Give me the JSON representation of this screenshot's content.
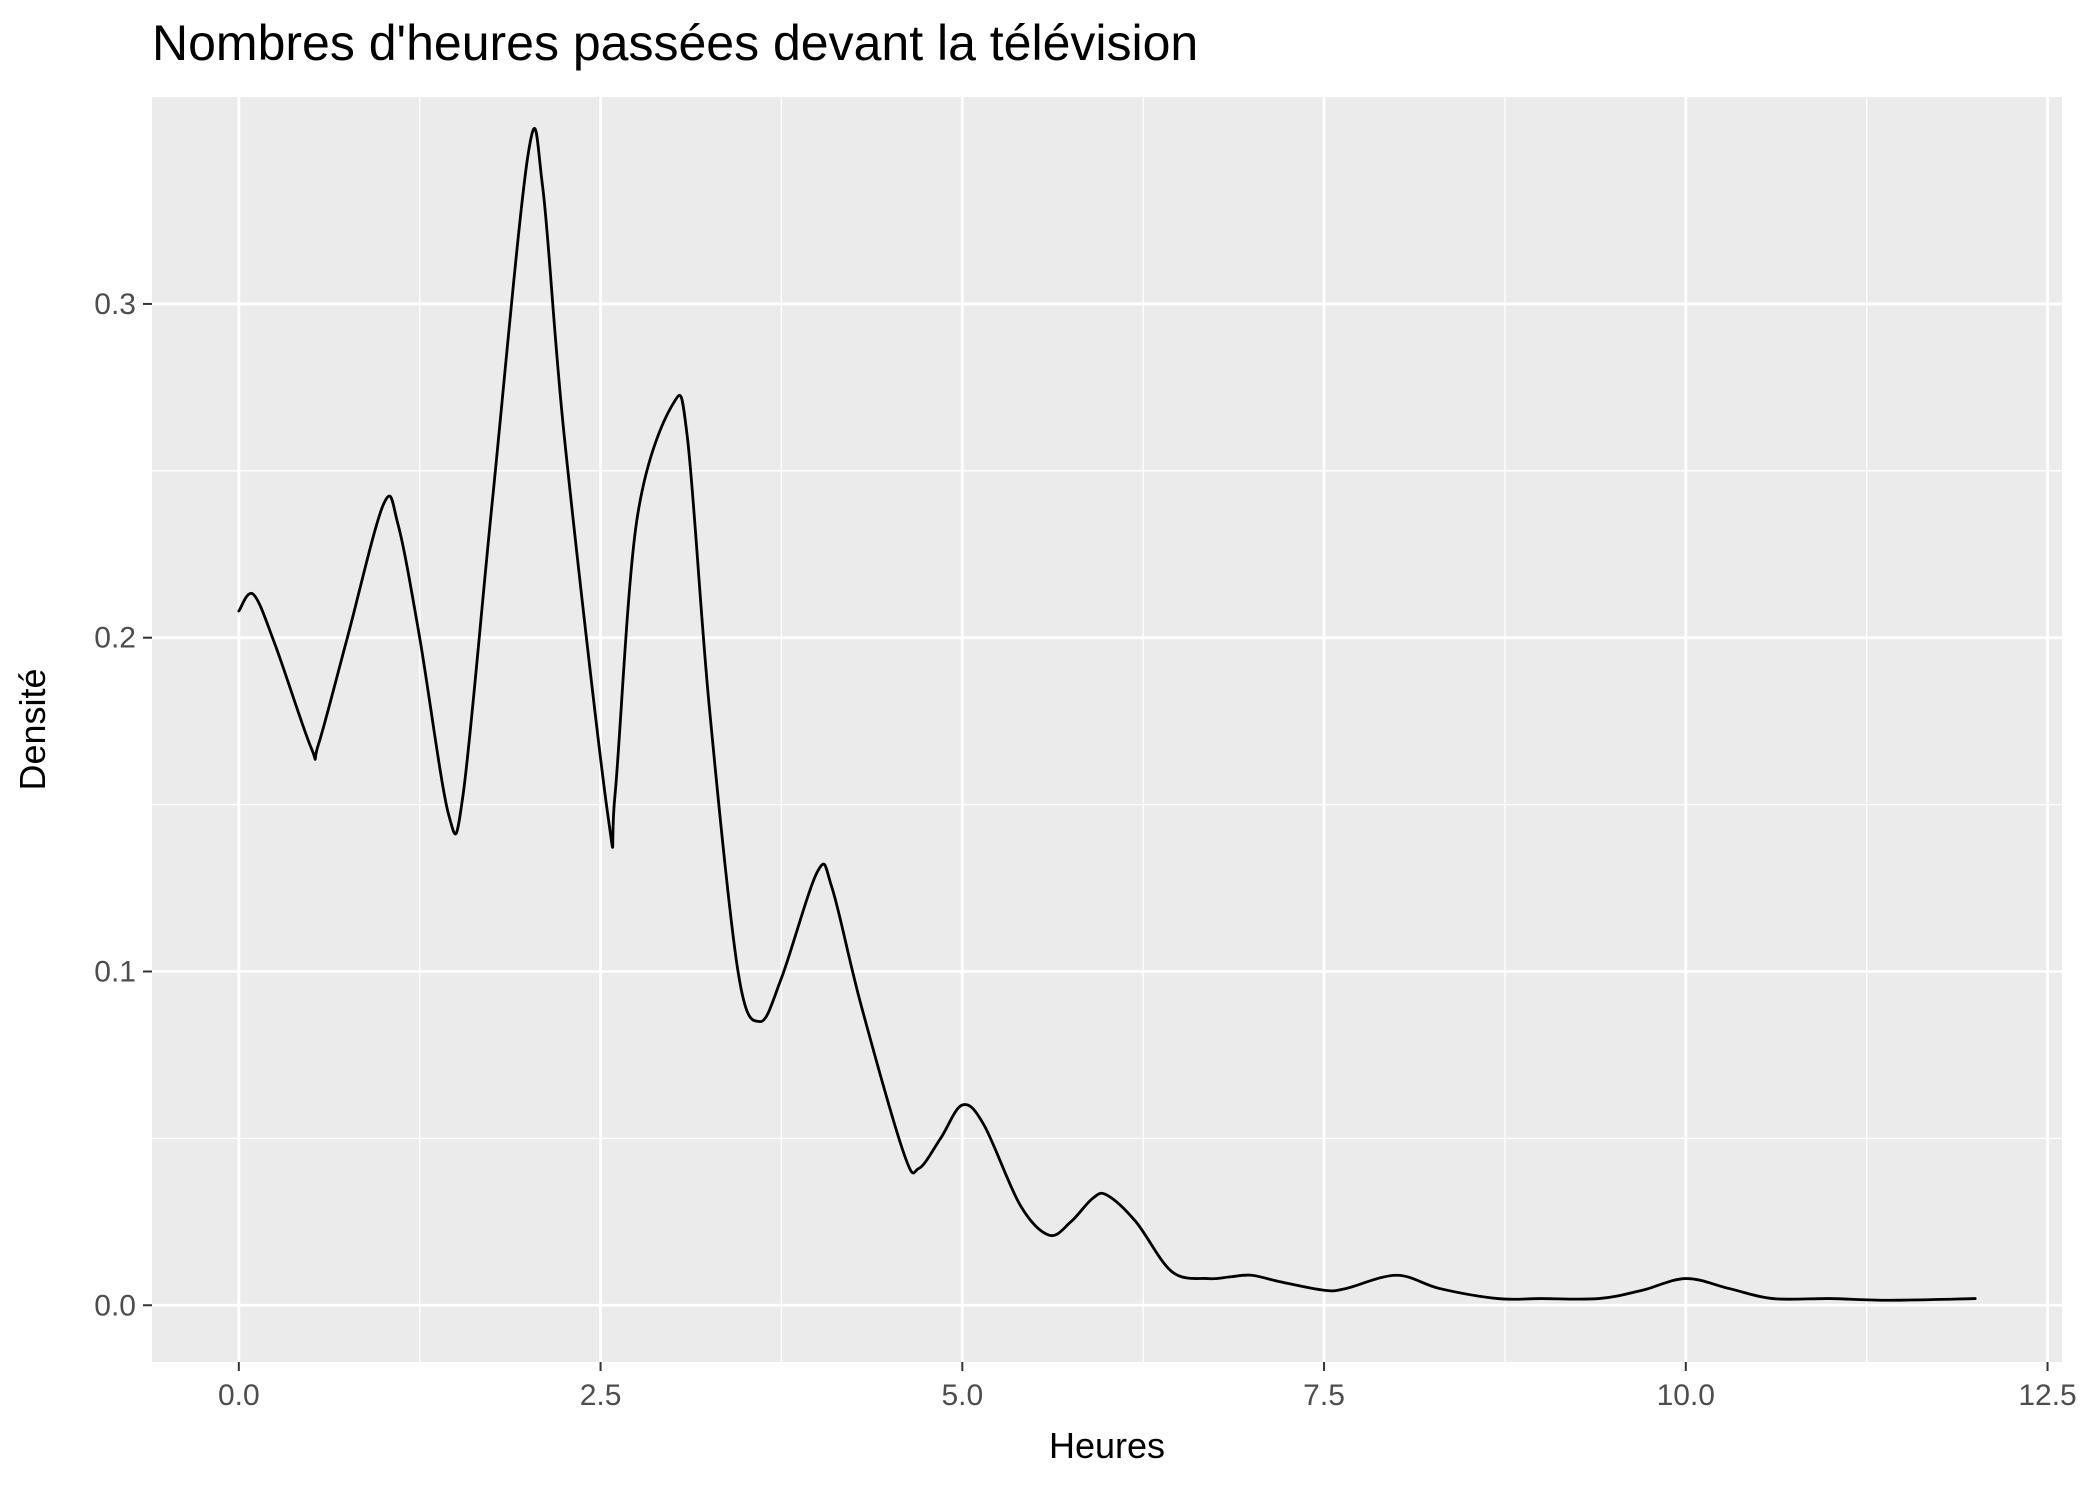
{
  "chart_data": {
    "type": "line",
    "title": "Nombres d'heures passées devant la télévision",
    "xlabel": "Heures",
    "ylabel": "Densité",
    "xlim": [
      -0.6,
      12.6
    ],
    "ylim": [
      -0.017,
      0.362
    ],
    "x_ticks": [
      0,
      2.5,
      5,
      7.5,
      10,
      12.5
    ],
    "x_tick_labels": [
      "0.0",
      "2.5",
      "5.0",
      "7.5",
      "10.0",
      "12.5"
    ],
    "y_ticks": [
      0,
      0.1,
      0.2,
      0.3
    ],
    "y_tick_labels": [
      "0.0",
      "0.1",
      "0.2",
      "0.3"
    ],
    "grid": true,
    "legend": "none",
    "colors": {
      "panel": "#ebebeb",
      "grid": "#ffffff",
      "line": "#000000",
      "tick_label": "#4d4d4d",
      "tick_mark": "#333333"
    },
    "series": [
      {
        "x": [
          0,
          0.1,
          0.25,
          0.5,
          0.55,
          0.75,
          1.0,
          1.1,
          1.25,
          1.45,
          1.55,
          1.75,
          2.0,
          2.1,
          2.25,
          2.55,
          2.6,
          2.75,
          3.0,
          3.1,
          3.25,
          3.45,
          3.6,
          3.75,
          4.0,
          4.1,
          4.3,
          4.6,
          4.7,
          4.85,
          5.0,
          5.15,
          5.4,
          5.6,
          5.75,
          5.9,
          6.0,
          6.2,
          6.45,
          6.7,
          6.85,
          7.0,
          7.2,
          7.5,
          7.65,
          8.0,
          8.3,
          8.7,
          9.0,
          9.4,
          9.7,
          10.0,
          10.3,
          10.6,
          11.0,
          11.4,
          12.0
        ],
        "y": [
          0.208,
          0.213,
          0.198,
          0.167,
          0.168,
          0.2,
          0.24,
          0.234,
          0.2,
          0.147,
          0.153,
          0.24,
          0.345,
          0.335,
          0.26,
          0.147,
          0.153,
          0.235,
          0.27,
          0.26,
          0.18,
          0.1,
          0.085,
          0.098,
          0.13,
          0.125,
          0.09,
          0.045,
          0.041,
          0.05,
          0.06,
          0.054,
          0.03,
          0.021,
          0.025,
          0.032,
          0.033,
          0.025,
          0.01,
          0.008,
          0.0085,
          0.009,
          0.007,
          0.0045,
          0.005,
          0.009,
          0.005,
          0.002,
          0.002,
          0.002,
          0.0045,
          0.008,
          0.005,
          0.002,
          0.002,
          0.0015,
          0.002
        ]
      }
    ]
  }
}
